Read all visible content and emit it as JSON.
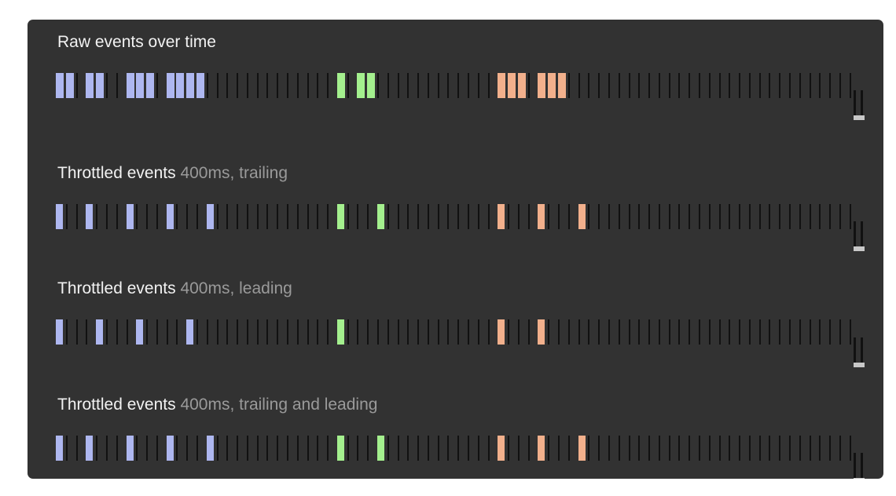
{
  "colors": {
    "panel": "#323232",
    "tick": "#111111",
    "title": "#f2f2f2",
    "subtitle": "#9a9a9a",
    "blue": "#aeb7f0",
    "green": "#a4f08e",
    "orange": "#f2b08c",
    "handle_base": "#c8c8c8"
  },
  "rows": [
    {
      "title": "Raw events over time",
      "subtitle": "",
      "events": [
        {
          "slot": 0,
          "color": "blue"
        },
        {
          "slot": 1,
          "color": "blue"
        },
        {
          "slot": 3,
          "color": "blue"
        },
        {
          "slot": 4,
          "color": "blue"
        },
        {
          "slot": 7,
          "color": "blue"
        },
        {
          "slot": 8,
          "color": "blue"
        },
        {
          "slot": 9,
          "color": "blue"
        },
        {
          "slot": 11,
          "color": "blue"
        },
        {
          "slot": 12,
          "color": "blue"
        },
        {
          "slot": 13,
          "color": "blue"
        },
        {
          "slot": 14,
          "color": "blue"
        },
        {
          "slot": 28,
          "color": "green"
        },
        {
          "slot": 30,
          "color": "green"
        },
        {
          "slot": 31,
          "color": "green"
        },
        {
          "slot": 44,
          "color": "orange"
        },
        {
          "slot": 45,
          "color": "orange"
        },
        {
          "slot": 46,
          "color": "orange"
        },
        {
          "slot": 48,
          "color": "orange"
        },
        {
          "slot": 49,
          "color": "orange"
        },
        {
          "slot": 50,
          "color": "orange"
        }
      ]
    },
    {
      "title": "Throttled events",
      "subtitle": "400ms, trailing",
      "events": [
        {
          "slot": 0,
          "color": "blue"
        },
        {
          "slot": 3,
          "color": "blue"
        },
        {
          "slot": 7,
          "color": "blue"
        },
        {
          "slot": 11,
          "color": "blue"
        },
        {
          "slot": 15,
          "color": "blue"
        },
        {
          "slot": 28,
          "color": "green"
        },
        {
          "slot": 32,
          "color": "green"
        },
        {
          "slot": 44,
          "color": "orange"
        },
        {
          "slot": 48,
          "color": "orange"
        },
        {
          "slot": 52,
          "color": "orange"
        }
      ]
    },
    {
      "title": "Throttled events",
      "subtitle": "400ms, leading",
      "events": [
        {
          "slot": 0,
          "color": "blue"
        },
        {
          "slot": 4,
          "color": "blue"
        },
        {
          "slot": 8,
          "color": "blue"
        },
        {
          "slot": 13,
          "color": "blue"
        },
        {
          "slot": 28,
          "color": "green"
        },
        {
          "slot": 44,
          "color": "orange"
        },
        {
          "slot": 48,
          "color": "orange"
        }
      ]
    },
    {
      "title": "Throttled events",
      "subtitle": "400ms, trailing and leading",
      "events": [
        {
          "slot": 0,
          "color": "blue"
        },
        {
          "slot": 3,
          "color": "blue"
        },
        {
          "slot": 7,
          "color": "blue"
        },
        {
          "slot": 11,
          "color": "blue"
        },
        {
          "slot": 15,
          "color": "blue"
        },
        {
          "slot": 28,
          "color": "green"
        },
        {
          "slot": 32,
          "color": "green"
        },
        {
          "slot": 44,
          "color": "orange"
        },
        {
          "slot": 48,
          "color": "orange"
        },
        {
          "slot": 52,
          "color": "orange"
        }
      ]
    }
  ]
}
